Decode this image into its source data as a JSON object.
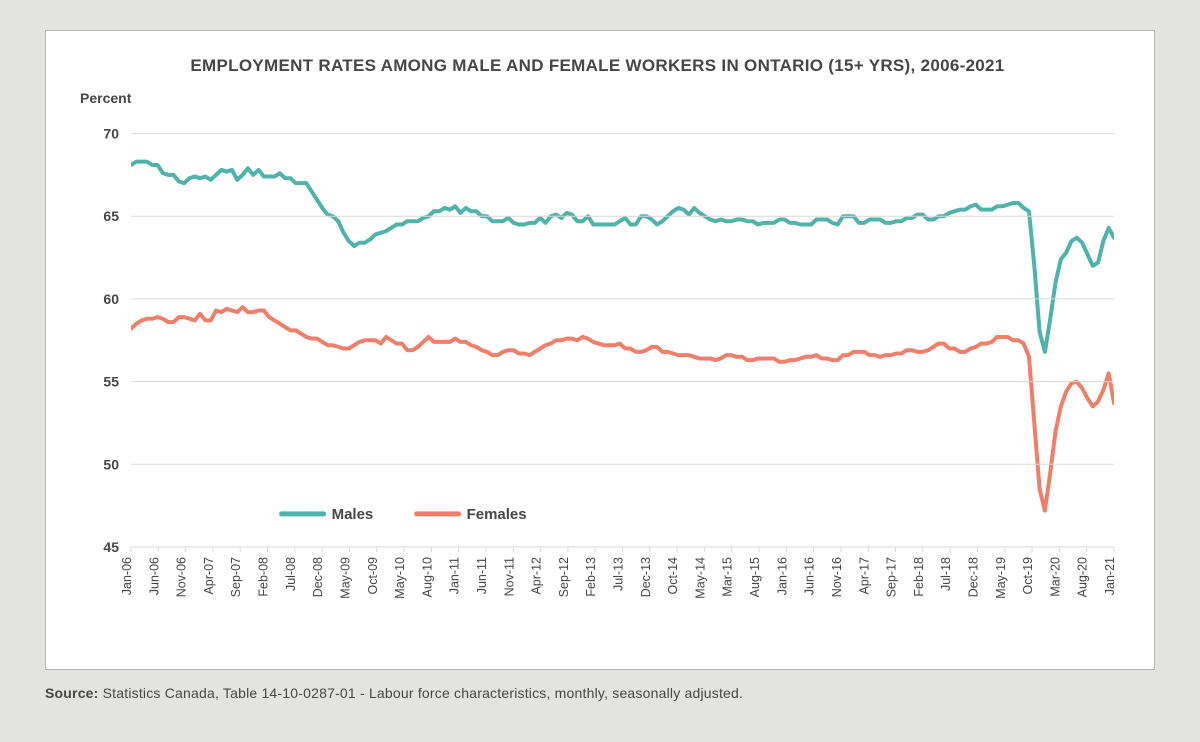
{
  "chart": {
    "type": "line",
    "title": "EMPLOYMENT RATES AMONG MALE AND FEMALE WORKERS IN ONTARIO (15+ YRS), 2006-2021",
    "y_axis_title": "Percent",
    "source_label": "Source:",
    "source_text": " Statistics Canada, Table 14-10-0287-01 - Labour force characteristics, monthly, seasonally adjusted.",
    "background_color": "#ffffff",
    "page_background": "#e3e3e1",
    "border_color": "#b5b5b3",
    "grid_color": "#d9d9d7",
    "text_color": "#464646",
    "line_width": 4,
    "y_axis": {
      "min": 45,
      "max": 71,
      "ticks": [
        45,
        50,
        55,
        60,
        65,
        70
      ]
    },
    "x_labels": [
      "Jan-06",
      "Jun-06",
      "Nov-06",
      "Apr-07",
      "Sep-07",
      "Feb-08",
      "Jul-08",
      "Dec-08",
      "May-09",
      "Oct-09",
      "May-10",
      "Aug-10",
      "Jan-11",
      "Jun-11",
      "Nov-11",
      "Apr-12",
      "Sep-12",
      "Feb-13",
      "Jul-13",
      "Dec-13",
      "Oct-14",
      "May-14",
      "Mar-15",
      "Aug-15",
      "Jan-16",
      "Jun-16",
      "Nov-16",
      "Apr-17",
      "Sep-17",
      "Feb-18",
      "Jul-18",
      "Dec-18",
      "May-19",
      "Oct-19",
      "Mar-20",
      "Aug-20",
      "Jan-21"
    ],
    "n_points": 186,
    "legend": {
      "items": [
        {
          "label": "Males",
          "color": "#4fb3a9"
        },
        {
          "label": "Females",
          "color": "#f07f6a"
        }
      ]
    },
    "series": [
      {
        "name": "Males",
        "color": "#4fb3a9",
        "values": [
          68.1,
          68.3,
          68.3,
          68.3,
          68.1,
          68.1,
          67.6,
          67.5,
          67.5,
          67.1,
          67.0,
          67.3,
          67.4,
          67.3,
          67.4,
          67.2,
          67.5,
          67.8,
          67.7,
          67.8,
          67.2,
          67.5,
          67.9,
          67.5,
          67.8,
          67.4,
          67.4,
          67.4,
          67.6,
          67.3,
          67.3,
          67.0,
          67.0,
          67.0,
          66.5,
          66.0,
          65.5,
          65.1,
          65.0,
          64.7,
          64.0,
          63.5,
          63.2,
          63.4,
          63.4,
          63.6,
          63.9,
          64.0,
          64.1,
          64.3,
          64.5,
          64.5,
          64.7,
          64.7,
          64.7,
          64.9,
          65.0,
          65.3,
          65.3,
          65.5,
          65.4,
          65.6,
          65.2,
          65.5,
          65.3,
          65.3,
          65.0,
          65.0,
          64.7,
          64.7,
          64.7,
          64.9,
          64.6,
          64.5,
          64.5,
          64.6,
          64.6,
          64.9,
          64.6,
          65.0,
          65.1,
          64.9,
          65.2,
          65.1,
          64.7,
          64.7,
          65.0,
          64.5,
          64.5,
          64.5,
          64.5,
          64.5,
          64.7,
          64.9,
          64.5,
          64.5,
          65.0,
          65.0,
          64.8,
          64.5,
          64.7,
          65.0,
          65.3,
          65.5,
          65.4,
          65.1,
          65.5,
          65.2,
          65.0,
          64.8,
          64.7,
          64.8,
          64.7,
          64.7,
          64.8,
          64.8,
          64.7,
          64.7,
          64.5,
          64.6,
          64.6,
          64.6,
          64.8,
          64.8,
          64.6,
          64.6,
          64.5,
          64.5,
          64.5,
          64.8,
          64.8,
          64.8,
          64.6,
          64.5,
          65.0,
          65.0,
          65.0,
          64.6,
          64.6,
          64.8,
          64.8,
          64.8,
          64.6,
          64.6,
          64.7,
          64.7,
          64.9,
          64.9,
          65.1,
          65.1,
          64.8,
          64.8,
          65.0,
          65.0,
          65.2,
          65.3,
          65.4,
          65.4,
          65.6,
          65.7,
          65.4,
          65.4,
          65.4,
          65.6,
          65.6,
          65.7,
          65.8,
          65.8,
          65.5,
          65.3,
          62.0,
          58.0,
          56.8,
          58.8,
          61.0,
          62.4,
          62.8,
          63.5,
          63.7,
          63.4,
          62.7,
          62.0,
          62.2,
          63.5,
          64.3,
          63.7
        ]
      },
      {
        "name": "Females",
        "color": "#f07f6a",
        "values": [
          58.2,
          58.5,
          58.7,
          58.8,
          58.8,
          58.9,
          58.8,
          58.6,
          58.6,
          58.9,
          58.9,
          58.8,
          58.7,
          59.1,
          58.7,
          58.7,
          59.3,
          59.2,
          59.4,
          59.3,
          59.2,
          59.5,
          59.2,
          59.2,
          59.3,
          59.3,
          58.9,
          58.7,
          58.5,
          58.3,
          58.1,
          58.1,
          57.9,
          57.7,
          57.6,
          57.6,
          57.4,
          57.2,
          57.2,
          57.1,
          57.0,
          57.0,
          57.2,
          57.4,
          57.5,
          57.5,
          57.5,
          57.3,
          57.7,
          57.5,
          57.3,
          57.3,
          56.9,
          56.9,
          57.1,
          57.4,
          57.7,
          57.4,
          57.4,
          57.4,
          57.4,
          57.6,
          57.4,
          57.4,
          57.2,
          57.1,
          56.9,
          56.8,
          56.6,
          56.6,
          56.8,
          56.9,
          56.9,
          56.7,
          56.7,
          56.6,
          56.8,
          57.0,
          57.2,
          57.3,
          57.5,
          57.5,
          57.6,
          57.6,
          57.5,
          57.7,
          57.6,
          57.4,
          57.3,
          57.2,
          57.2,
          57.2,
          57.3,
          57.0,
          57.0,
          56.8,
          56.8,
          56.9,
          57.1,
          57.1,
          56.8,
          56.8,
          56.7,
          56.6,
          56.6,
          56.6,
          56.5,
          56.4,
          56.4,
          56.4,
          56.3,
          56.4,
          56.6,
          56.6,
          56.5,
          56.5,
          56.3,
          56.3,
          56.4,
          56.4,
          56.4,
          56.4,
          56.2,
          56.2,
          56.3,
          56.3,
          56.4,
          56.5,
          56.5,
          56.6,
          56.4,
          56.4,
          56.3,
          56.3,
          56.6,
          56.6,
          56.8,
          56.8,
          56.8,
          56.6,
          56.6,
          56.5,
          56.6,
          56.6,
          56.7,
          56.7,
          56.9,
          56.9,
          56.8,
          56.8,
          56.9,
          57.1,
          57.3,
          57.3,
          57.0,
          57.0,
          56.8,
          56.8,
          57.0,
          57.1,
          57.3,
          57.3,
          57.4,
          57.7,
          57.7,
          57.7,
          57.5,
          57.5,
          57.3,
          56.5,
          52.5,
          48.5,
          47.2,
          49.5,
          52.0,
          53.5,
          54.4,
          54.9,
          55.0,
          54.6,
          54.0,
          53.5,
          53.8,
          54.5,
          55.5,
          53.7
        ]
      }
    ]
  }
}
